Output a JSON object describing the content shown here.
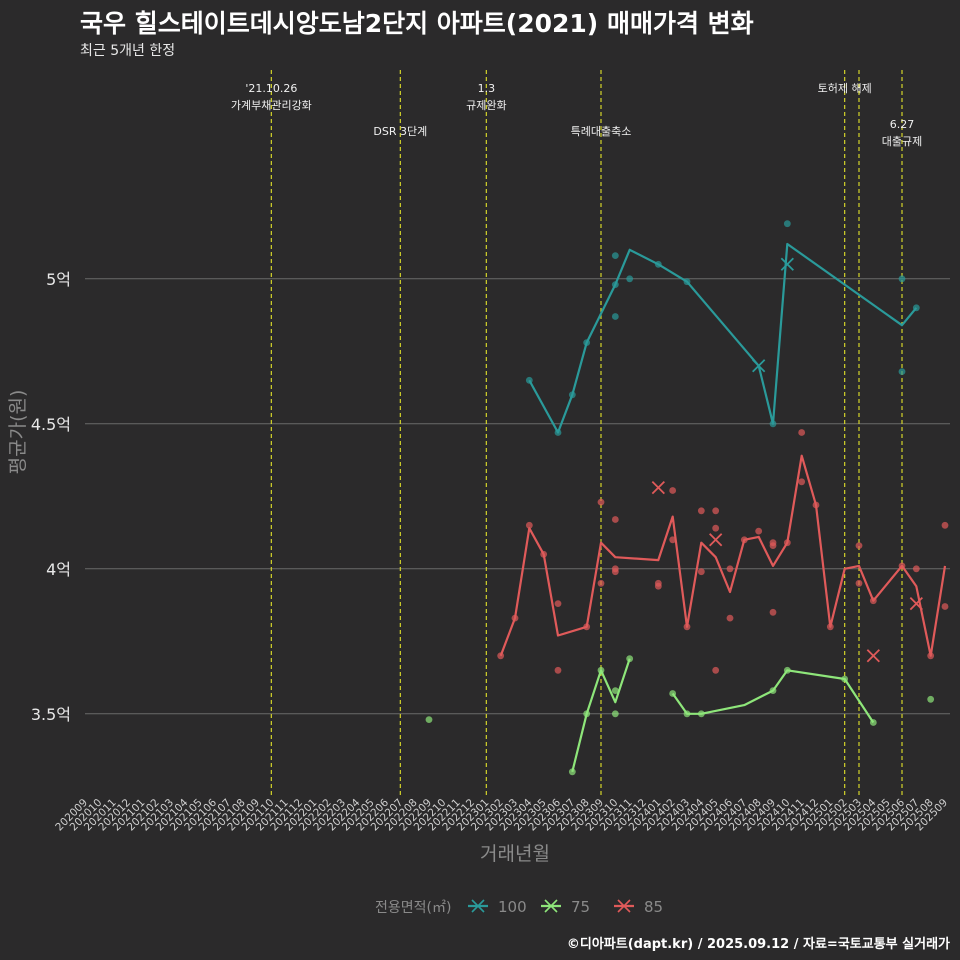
{
  "header": {
    "title": "국우 힐스테이트데시앙도남2단지 아파트(2021) 매매가격 변화",
    "subtitle": "최근 5개년 한정"
  },
  "footer": {
    "credit": "©디아파트(dapt.kr) / 2025.09.12 / 자료=국토교통부 실거래가"
  },
  "chart_data": {
    "type": "line",
    "xlabel": "거래년월",
    "ylabel": "평균가(원)",
    "x": [
      "202009",
      "202010",
      "202011",
      "202012",
      "202101",
      "202102",
      "202103",
      "202104",
      "202105",
      "202106",
      "202107",
      "202108",
      "202109",
      "202110",
      "202111",
      "202112",
      "202201",
      "202202",
      "202203",
      "202204",
      "202205",
      "202206",
      "202207",
      "202208",
      "202209",
      "202210",
      "202211",
      "202212",
      "202301",
      "202302",
      "202303",
      "202304",
      "202305",
      "202306",
      "202307",
      "202308",
      "202309",
      "202310",
      "202311",
      "202312",
      "202401",
      "202402",
      "202403",
      "202404",
      "202405",
      "202406",
      "202407",
      "202408",
      "202409",
      "202410",
      "202411",
      "202412",
      "202501",
      "202502",
      "202503",
      "202504",
      "202505",
      "202506",
      "202507",
      "202508",
      "202509"
    ],
    "ylim": [
      3.22,
      5.72
    ],
    "yticks": [
      {
        "value": 3.5,
        "label": "3.5억"
      },
      {
        "value": 4.0,
        "label": "4억"
      },
      {
        "value": 4.5,
        "label": "4.5억"
      },
      {
        "value": 5.0,
        "label": "5억"
      }
    ],
    "grid": true,
    "legend": {
      "title": "전용면적(㎡)",
      "position": "bottom"
    },
    "series": [
      {
        "name": "100",
        "color": "#2a9a9a",
        "line": [
          [
            "202304",
            4.65
          ],
          [
            "202306",
            4.47
          ],
          [
            "202307",
            4.6
          ],
          [
            "202308",
            4.78
          ],
          [
            "202309",
            4.88
          ],
          [
            "202310",
            4.98
          ],
          [
            "202311",
            5.1
          ],
          [
            "202401",
            5.05
          ],
          [
            "202403",
            4.99
          ],
          [
            "202408",
            4.7
          ],
          [
            "202409",
            4.5
          ],
          [
            "202410",
            5.12
          ],
          [
            "202506",
            4.84
          ],
          [
            "202507",
            4.9
          ]
        ],
        "points": [
          [
            "202304",
            4.65
          ],
          [
            "202306",
            4.47
          ],
          [
            "202307",
            4.6
          ],
          [
            "202308",
            4.78
          ],
          [
            "202310",
            5.08
          ],
          [
            "202310",
            4.98
          ],
          [
            "202310",
            4.87
          ],
          [
            "202311",
            5.0
          ],
          [
            "202401",
            5.05
          ],
          [
            "202403",
            4.99
          ],
          [
            "202409",
            4.5
          ],
          [
            "202410",
            5.19
          ],
          [
            "202506",
            5.0
          ],
          [
            "202506",
            4.68
          ],
          [
            "202507",
            4.9
          ]
        ],
        "cross_points": [
          [
            "202408",
            4.7
          ],
          [
            "202410",
            5.05
          ]
        ]
      },
      {
        "name": "75",
        "color": "#8ee67a",
        "line": [
          [
            "202307",
            3.3
          ],
          [
            "202308",
            3.5
          ],
          [
            "202309",
            3.65
          ],
          [
            "202310",
            3.54
          ],
          [
            "202311",
            3.69
          ],
          null,
          [
            "202402",
            3.57
          ],
          [
            "202403",
            3.5
          ],
          [
            "202404",
            3.5
          ],
          [
            "202407",
            3.53
          ],
          [
            "202409",
            3.58
          ],
          [
            "202410",
            3.65
          ],
          [
            "202502",
            3.62
          ],
          [
            "202504",
            3.47
          ]
        ],
        "points": [
          [
            "202209",
            3.48
          ],
          [
            "202307",
            3.3
          ],
          [
            "202308",
            3.5
          ],
          [
            "202309",
            3.65
          ],
          [
            "202310",
            3.58
          ],
          [
            "202310",
            3.5
          ],
          [
            "202311",
            3.69
          ],
          [
            "202402",
            3.57
          ],
          [
            "202403",
            3.5
          ],
          [
            "202404",
            3.5
          ],
          [
            "202409",
            3.58
          ],
          [
            "202410",
            3.65
          ],
          [
            "202502",
            3.62
          ],
          [
            "202504",
            3.47
          ],
          [
            "202508",
            3.55
          ]
        ],
        "cross_points": []
      },
      {
        "name": "85",
        "color": "#e05a5a",
        "line": [
          [
            "202302",
            3.7
          ],
          [
            "202303",
            3.83
          ],
          [
            "202304",
            4.14
          ],
          [
            "202305",
            4.05
          ],
          [
            "202306",
            3.77
          ],
          [
            "202308",
            3.8
          ],
          [
            "202309",
            4.09
          ],
          [
            "202310",
            4.04
          ],
          [
            "202401",
            4.03
          ],
          [
            "202402",
            4.18
          ],
          [
            "202403",
            3.8
          ],
          [
            "202404",
            4.09
          ],
          [
            "202405",
            4.04
          ],
          [
            "202406",
            3.92
          ],
          [
            "202407",
            4.1
          ],
          [
            "202408",
            4.11
          ],
          [
            "202409",
            4.01
          ],
          [
            "202410",
            4.09
          ],
          [
            "202411",
            4.39
          ],
          [
            "202412",
            4.22
          ],
          [
            "202501",
            3.8
          ],
          [
            "202502",
            4.0
          ],
          [
            "202503",
            4.01
          ],
          [
            "202504",
            3.89
          ],
          [
            "202506",
            4.01
          ],
          [
            "202507",
            3.94
          ],
          [
            "202508",
            3.7
          ],
          [
            "202509",
            4.01
          ]
        ],
        "points": [
          [
            "202302",
            3.7
          ],
          [
            "202303",
            3.83
          ],
          [
            "202304",
            4.15
          ],
          [
            "202305",
            4.05
          ],
          [
            "202306",
            3.88
          ],
          [
            "202306",
            3.65
          ],
          [
            "202308",
            3.8
          ],
          [
            "202309",
            4.23
          ],
          [
            "202309",
            3.95
          ],
          [
            "202310",
            4.17
          ],
          [
            "202310",
            4.0
          ],
          [
            "202310",
            3.99
          ],
          [
            "202401",
            3.95
          ],
          [
            "202401",
            3.94
          ],
          [
            "202402",
            4.27
          ],
          [
            "202402",
            4.1
          ],
          [
            "202403",
            3.8
          ],
          [
            "202404",
            4.2
          ],
          [
            "202404",
            3.99
          ],
          [
            "202405",
            4.2
          ],
          [
            "202405",
            4.14
          ],
          [
            "202405",
            3.65
          ],
          [
            "202406",
            4.0
          ],
          [
            "202406",
            3.83
          ],
          [
            "202407",
            4.1
          ],
          [
            "202408",
            4.13
          ],
          [
            "202409",
            4.09
          ],
          [
            "202409",
            4.08
          ],
          [
            "202409",
            3.85
          ],
          [
            "202410",
            4.09
          ],
          [
            "202411",
            4.47
          ],
          [
            "202411",
            4.3
          ],
          [
            "202412",
            4.22
          ],
          [
            "202501",
            3.8
          ],
          [
            "202503",
            4.08
          ],
          [
            "202503",
            3.95
          ],
          [
            "202504",
            3.89
          ],
          [
            "202506",
            4.01
          ],
          [
            "202507",
            4.0
          ],
          [
            "202508",
            3.7
          ],
          [
            "202509",
            4.15
          ],
          [
            "202509",
            3.87
          ]
        ],
        "cross_points": [
          [
            "202401",
            4.28
          ],
          [
            "202405",
            4.1
          ],
          [
            "202504",
            3.7
          ],
          [
            "202507",
            3.88
          ]
        ]
      }
    ],
    "annotations": [
      {
        "x": "202110",
        "lines": [
          "'21.10.26",
          "가계부채관리강화"
        ],
        "row": 0
      },
      {
        "x": "202207",
        "lines": [
          "DSR 3단계"
        ],
        "row": 1
      },
      {
        "x": "202301",
        "lines": [
          "1.3",
          "규제완화"
        ],
        "row": 0
      },
      {
        "x": "202309",
        "lines": [
          "특례대출축소"
        ],
        "row": 1
      },
      {
        "x": "202502",
        "lines": [
          "토허제 해제"
        ],
        "row": 0
      },
      {
        "x": "202503",
        "lines": [],
        "row": 0
      },
      {
        "x": "202506",
        "lines": [
          "6.27",
          "대출규제"
        ],
        "row": 2
      }
    ]
  }
}
